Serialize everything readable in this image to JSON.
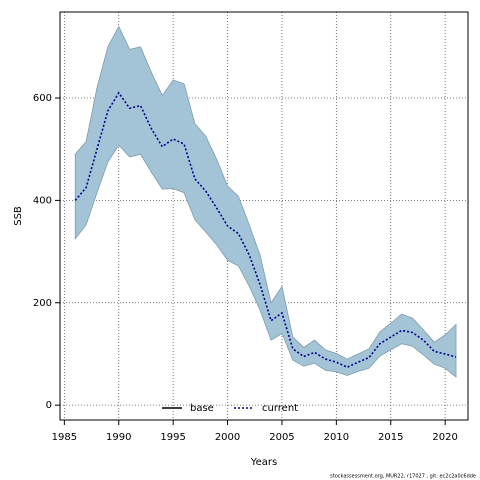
{
  "chart_data": {
    "type": "line",
    "xlabel": "Years",
    "ylabel": "SSB",
    "x": [
      1986,
      1987,
      1988,
      1989,
      1990,
      1991,
      1992,
      1993,
      1994,
      1995,
      1996,
      1997,
      1998,
      1999,
      2000,
      2001,
      2002,
      2003,
      2004,
      2005,
      2006,
      2007,
      2008,
      2009,
      2010,
      2011,
      2012,
      2013,
      2014,
      2015,
      2016,
      2017,
      2018,
      2019,
      2020,
      2021
    ],
    "series": [
      {
        "name": "current",
        "color": "#00008b",
        "dash": "dotted",
        "values": [
          400,
          425,
          500,
          575,
          610,
          580,
          585,
          540,
          505,
          520,
          510,
          442,
          418,
          385,
          350,
          335,
          293,
          235,
          165,
          180,
          110,
          95,
          103,
          90,
          84,
          74,
          84,
          93,
          120,
          133,
          146,
          142,
          127,
          105,
          100,
          94
        ],
        "upper": [
          490,
          515,
          620,
          700,
          740,
          695,
          700,
          650,
          605,
          635,
          628,
          550,
          525,
          480,
          428,
          408,
          352,
          292,
          200,
          232,
          133,
          113,
          127,
          108,
          101,
          90,
          100,
          110,
          143,
          160,
          178,
          170,
          147,
          123,
          137,
          158
        ],
        "lower": [
          325,
          352,
          415,
          475,
          508,
          485,
          490,
          455,
          422,
          423,
          415,
          362,
          338,
          313,
          283,
          272,
          232,
          185,
          127,
          140,
          88,
          76,
          82,
          68,
          65,
          58,
          66,
          72,
          96,
          108,
          120,
          115,
          98,
          80,
          72,
          55
        ],
        "band_color": "#a3c4d6"
      }
    ],
    "legend": [
      {
        "name": "base",
        "color": "#000000",
        "dash": "solid"
      },
      {
        "name": "current",
        "color": "#00008b",
        "dash": "dotted"
      }
    ],
    "xlim": [
      1984.6,
      2022.1
    ],
    "ylim": [
      -29,
      768
    ],
    "xticks": [
      1985,
      1990,
      1995,
      2000,
      2005,
      2010,
      2015,
      2020
    ],
    "yticks": [
      0,
      200,
      400,
      600
    ],
    "grid": true,
    "footer": "stockassessment.org, MUR22, r17027 , git: ec2c2a0c6dde"
  }
}
